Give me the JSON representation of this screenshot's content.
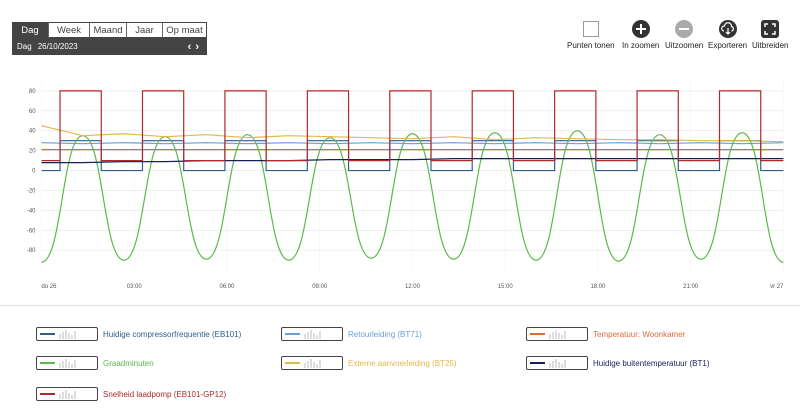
{
  "period": {
    "tabs": [
      "Dag",
      "Week",
      "Maand",
      "Jaar",
      "Op maat"
    ],
    "active": "Dag",
    "date_label": "Dag",
    "date_value": "26/10/2023",
    "prev": "‹",
    "next": "›"
  },
  "toolbar": {
    "points": "Punten tonen",
    "zoom_in": "In zoomen",
    "zoom_out": "Uitzoomen",
    "export": "Exporteren",
    "expand": "Uitbreiden"
  },
  "chart_data": {
    "type": "line",
    "y_ticks": [
      "80",
      "60",
      "40",
      "20",
      "0",
      "-20",
      "-40",
      "-60",
      "-80"
    ],
    "ylim": [
      -100,
      90
    ],
    "x_ticks": [
      "do 26",
      "03:00",
      "06:00",
      "09:00",
      "12:00",
      "15:00",
      "18:00",
      "21:00",
      "vr 27"
    ],
    "grid": true,
    "series": [
      {
        "name": "Huidige compressorfrequentie (EB101)",
        "color": "#2e5f8a",
        "values": [
          0,
          30,
          0,
          30,
          0,
          30,
          0,
          30,
          0,
          30,
          0,
          30,
          0,
          30,
          0,
          30,
          0,
          30,
          0
        ]
      },
      {
        "name": "Retourleiding (BT71)",
        "color": "#6a9ed6",
        "values": [
          28,
          27,
          28,
          27,
          28,
          27,
          28,
          27,
          28,
          27,
          28,
          27,
          28,
          27,
          28,
          27,
          28,
          27,
          28
        ]
      },
      {
        "name": "Temperatuur: Woonkamer",
        "color": "#e06b3a",
        "values": [
          21,
          21,
          21,
          21,
          21,
          21,
          21,
          21,
          21,
          21,
          21,
          21,
          21,
          21,
          21,
          21,
          21,
          21,
          21
        ]
      },
      {
        "name": "Graadminuten",
        "color": "#5bb84a",
        "values": [
          -92,
          35,
          -90,
          34,
          -89,
          36,
          -90,
          33,
          -88,
          37,
          -89,
          38,
          -90,
          40,
          -91,
          36,
          -89,
          38,
          -92
        ]
      },
      {
        "name": "Externe aanvoerleiding (BT25)",
        "color": "#e0b94a",
        "values": [
          45,
          35,
          37,
          34,
          36,
          33,
          35,
          34,
          33,
          32,
          34,
          31,
          33,
          32,
          31,
          31,
          30,
          30,
          29
        ]
      },
      {
        "name": "Huidige buitentemperatuur (BT1)",
        "color": "#1a1f5a",
        "values": [
          8,
          8,
          9,
          9,
          10,
          10,
          10,
          11,
          11,
          11,
          12,
          12,
          12,
          12,
          12,
          12,
          12,
          12,
          12
        ]
      },
      {
        "name": "Snelheid laadpomp (EB101-GP12)",
        "color": "#b02a2a",
        "values": [
          10,
          80,
          10,
          80,
          10,
          80,
          10,
          80,
          10,
          80,
          10,
          80,
          10,
          80,
          10,
          80,
          10,
          80,
          10
        ]
      }
    ]
  }
}
